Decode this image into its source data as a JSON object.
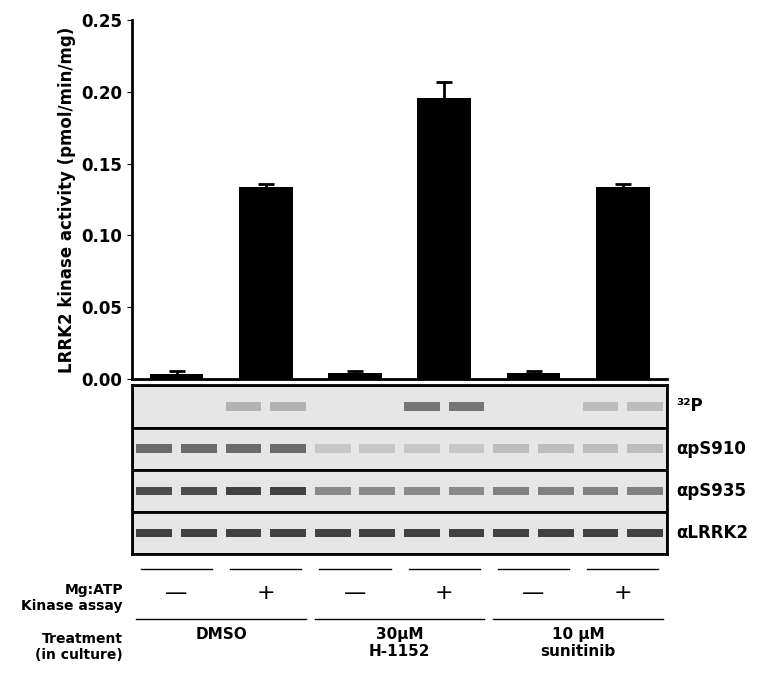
{
  "chart_data": {
    "type": "bar",
    "y_label": "LRRK2 kinase activity (pmol/min/mg)",
    "categories": [
      "—",
      "+",
      "—",
      "+",
      "—",
      "+"
    ],
    "values": [
      0.003,
      0.134,
      0.004,
      0.196,
      0.004,
      0.134
    ],
    "errors": [
      0.002,
      0.002,
      0.001,
      0.011,
      0.001,
      0.002
    ],
    "color": "#000000",
    "ylim": [
      0,
      0.25
    ],
    "yticks": [
      {
        "value": 0,
        "label": "0.00"
      },
      {
        "value": 0.05,
        "label": "0.05"
      },
      {
        "value": 0.1,
        "label": "0.10"
      },
      {
        "value": 0.15,
        "label": "0.15"
      },
      {
        "value": 0.2,
        "label": "0.20"
      },
      {
        "value": 0.25,
        "label": "0.25"
      }
    ],
    "grid": false,
    "blots": [
      "³²P",
      "αpS910",
      "αpS935",
      "αLRRK2"
    ],
    "category_row_label": "Mg:ATP\nKinase assay",
    "group_row_label": "Treatment\n(in culture)",
    "groups": [
      {
        "label": "DMSO",
        "members": [
          0,
          1
        ]
      },
      {
        "label": "30μM\nH-1152",
        "members": [
          2,
          3
        ]
      },
      {
        "label": "10 μM\nsunitinib",
        "members": [
          4,
          5
        ]
      }
    ]
  }
}
